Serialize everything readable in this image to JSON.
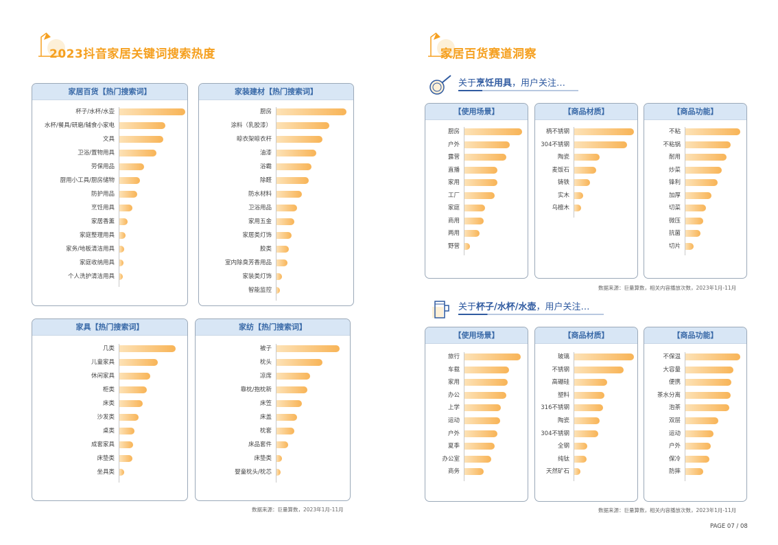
{
  "left_title": "2023抖音家居关键词搜索热度",
  "right_title": "家居百货赛道洞察",
  "left_source": "数据来源：巨量算数，2023年1月-11月",
  "right_source": "数据来源：巨量算数，相关内容播放次数，2023年1月-11月",
  "page_number": "PAGE 07 / 08",
  "sub1": {
    "prefix": "关于",
    "bold": "烹饪用具",
    "suffix": "，用户关注…"
  },
  "sub2": {
    "prefix": "关于",
    "bold": "杯子/水杯/水壶",
    "suffix": "，用户关注…"
  },
  "colors": {
    "bar_start": "#fde2b6",
    "bar_end": "#f8b457",
    "header_bg": "#d8e6f5",
    "header_text": "#3a6aa8",
    "title": "#f5a020"
  },
  "chart_data": [
    {
      "id": "c1",
      "type": "bar",
      "title": "家居百货【热门搜索词】",
      "categories": [
        "杯子/水杯/水壶",
        "水杯/餐具/研磨/辅食小家电",
        "文具",
        "卫浴/置物用具",
        "劳保用品",
        "厨用小工具/厨房储物",
        "防护用品",
        "烹饪用具",
        "家居香薰",
        "家庭整理用具",
        "家务/地板清洁用具",
        "家庭收纳用具",
        "个人洗护清洁用具"
      ],
      "values": [
        100,
        70,
        67,
        56,
        37,
        31,
        27,
        20,
        12,
        9,
        7,
        6,
        4
      ],
      "xlim": [
        0,
        100
      ]
    },
    {
      "id": "c2",
      "type": "bar",
      "title": "家装建材【热门搜索词】",
      "categories": [
        "厨房",
        "涂料（乳胶漆）",
        "晾衣架晾衣杆",
        "油漆",
        "浴霸",
        "除醛",
        "防水材料",
        "卫浴用品",
        "家用五金",
        "家居类灯饰",
        "胶类",
        "室内除臭芳香用品",
        "家装类灯饰",
        "智能监控"
      ],
      "values": [
        100,
        75,
        66,
        57,
        50,
        46,
        36,
        29,
        25,
        22,
        18,
        16,
        8,
        4
      ],
      "xlim": [
        0,
        100
      ]
    },
    {
      "id": "c3",
      "type": "bar",
      "title": "家具【热门搜索词】",
      "categories": [
        "几类",
        "儿童家具",
        "休闲家具",
        "柜类",
        "床类",
        "沙发类",
        "桌类",
        "成套家具",
        "床垫类",
        "坐具类"
      ],
      "values": [
        100,
        68,
        55,
        49,
        41,
        34,
        27,
        24,
        23,
        9
      ],
      "xlim": [
        0,
        100
      ]
    },
    {
      "id": "c4",
      "type": "bar",
      "title": "家纺【热门搜索词】",
      "categories": [
        "被子",
        "枕头",
        "凉席",
        "靠枕/抱枕新",
        "床笠",
        "床盖",
        "枕套",
        "床品套件",
        "床垫类",
        "婴童枕头/枕芯"
      ],
      "values": [
        100,
        73,
        53,
        49,
        40,
        33,
        28,
        18,
        9,
        7
      ],
      "xlim": [
        0,
        100
      ]
    },
    {
      "id": "c5",
      "type": "bar",
      "title": "【使用场景】",
      "categories": [
        "厨房",
        "户外",
        "露营",
        "直播",
        "家用",
        "工厂",
        "家庭",
        "商用",
        "两用",
        "野营"
      ],
      "values": [
        100,
        78,
        73,
        57,
        57,
        52,
        36,
        33,
        26,
        9
      ],
      "xlim": [
        0,
        100
      ]
    },
    {
      "id": "c6",
      "type": "bar",
      "title": "【商品材质】",
      "categories": [
        "柄不锈钢",
        "304不锈钢",
        "陶瓷",
        "麦饭石",
        "铸铁",
        "实木",
        "乌檀木"
      ],
      "values": [
        100,
        88,
        43,
        37,
        27,
        15,
        12
      ],
      "xlim": [
        0,
        100
      ]
    },
    {
      "id": "c7",
      "type": "bar",
      "title": "【商品功能】",
      "categories": [
        "不粘",
        "不粘锅",
        "耐用",
        "炒菜",
        "锋利",
        "加厚",
        "切菜",
        "微压",
        "抗菌",
        "切片"
      ],
      "values": [
        100,
        82,
        75,
        66,
        59,
        47,
        38,
        32,
        27,
        15
      ],
      "xlim": [
        0,
        100
      ]
    },
    {
      "id": "c8",
      "type": "bar",
      "title": "【使用场景】",
      "categories": [
        "旅行",
        "车载",
        "家用",
        "办公",
        "上学",
        "运动",
        "户外",
        "夏季",
        "办公室",
        "商务"
      ],
      "values": [
        100,
        79,
        77,
        74,
        65,
        63,
        59,
        54,
        48,
        34
      ],
      "xlim": [
        0,
        100
      ]
    },
    {
      "id": "c9",
      "type": "bar",
      "title": "【商品材质】",
      "categories": [
        "玻璃",
        "不锈钢",
        "高硼硅",
        "塑料",
        "316不锈钢",
        "陶瓷",
        "304不锈钢",
        "全钢",
        "纯钛",
        "天然矿石"
      ],
      "values": [
        100,
        83,
        55,
        50,
        48,
        43,
        40,
        22,
        21,
        10
      ],
      "xlim": [
        0,
        100
      ]
    },
    {
      "id": "c10",
      "type": "bar",
      "title": "【商品功能】",
      "categories": [
        "不保温",
        "大容量",
        "便携",
        "茶水分离",
        "泡茶",
        "双层",
        "运动",
        "户外",
        "保冷",
        "防摔"
      ],
      "values": [
        100,
        88,
        84,
        83,
        80,
        60,
        51,
        46,
        44,
        33
      ],
      "xlim": [
        0,
        100
      ]
    }
  ]
}
